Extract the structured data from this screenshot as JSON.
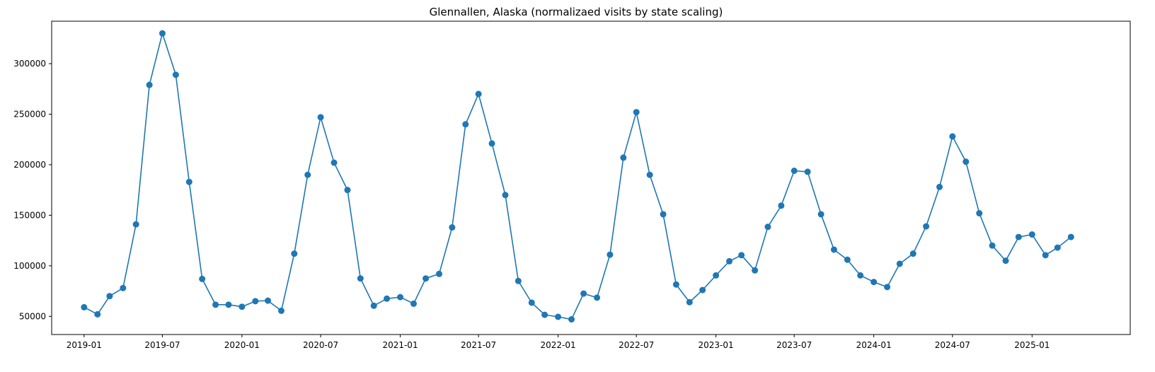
{
  "chart_data": {
    "type": "line",
    "title": "Glennallen, Alaska (normalizaed visits by state scaling)",
    "xlabel": "",
    "ylabel": "",
    "color": "#1f77b4",
    "marker": "circle",
    "grid": false,
    "xlim": [
      "2018-10-18",
      "2025-08-16"
    ],
    "ylim": [
      32000,
      342000
    ],
    "x_ticks": [
      "2019-01",
      "2019-07",
      "2020-01",
      "2020-07",
      "2021-01",
      "2021-07",
      "2022-01",
      "2022-07",
      "2023-01",
      "2023-07",
      "2024-01",
      "2024-07",
      "2025-01"
    ],
    "y_ticks": [
      50000,
      100000,
      150000,
      200000,
      250000,
      300000
    ],
    "y_tick_labels": [
      "50000",
      "100000",
      "150000",
      "200000",
      "250000",
      "300000"
    ],
    "series": [
      {
        "x": [
          "2019-01",
          "2019-02",
          "2019-03",
          "2019-04",
          "2019-05",
          "2019-06",
          "2019-07",
          "2019-08",
          "2019-09",
          "2019-10",
          "2019-11",
          "2019-12",
          "2020-01",
          "2020-02",
          "2020-03",
          "2020-04",
          "2020-05",
          "2020-06",
          "2020-07",
          "2020-08",
          "2020-09",
          "2020-10",
          "2020-11",
          "2020-12",
          "2021-01",
          "2021-02",
          "2021-03",
          "2021-04",
          "2021-05",
          "2021-06",
          "2021-07",
          "2021-08",
          "2021-09",
          "2021-10",
          "2021-11",
          "2021-12",
          "2022-01",
          "2022-02",
          "2022-03",
          "2022-04",
          "2022-05",
          "2022-06",
          "2022-07",
          "2022-08",
          "2022-09",
          "2022-10",
          "2022-11",
          "2022-12",
          "2023-01",
          "2023-02",
          "2023-03",
          "2023-04",
          "2023-05",
          "2023-06",
          "2023-07",
          "2023-08",
          "2023-09",
          "2023-10",
          "2023-11",
          "2023-12",
          "2024-01",
          "2024-02",
          "2024-03",
          "2024-04",
          "2024-05",
          "2024-06",
          "2024-07",
          "2024-08",
          "2024-09",
          "2024-10",
          "2024-11",
          "2024-12",
          "2025-01",
          "2025-02",
          "2025-03",
          "2025-04"
        ],
        "values": [
          59000,
          52000,
          70000,
          78000,
          141000,
          279000,
          330000,
          289000,
          183000,
          87000,
          61500,
          61500,
          59500,
          65000,
          65500,
          55500,
          112000,
          190000,
          247000,
          202000,
          175000,
          87500,
          60500,
          67500,
          69000,
          62500,
          87500,
          92000,
          138000,
          240000,
          270000,
          221000,
          170000,
          85000,
          63500,
          51500,
          49500,
          47000,
          72500,
          68500,
          111000,
          207000,
          252000,
          190000,
          151000,
          81500,
          64000,
          76000,
          90500,
          104500,
          110500,
          95500,
          138500,
          159500,
          194000,
          193000,
          151000,
          116000,
          106000,
          90500,
          84000,
          79000,
          102000,
          112000,
          139000,
          178000,
          228000,
          203000,
          152000,
          120000,
          105000,
          128500,
          131000,
          110500,
          118000,
          128500
        ]
      }
    ]
  }
}
